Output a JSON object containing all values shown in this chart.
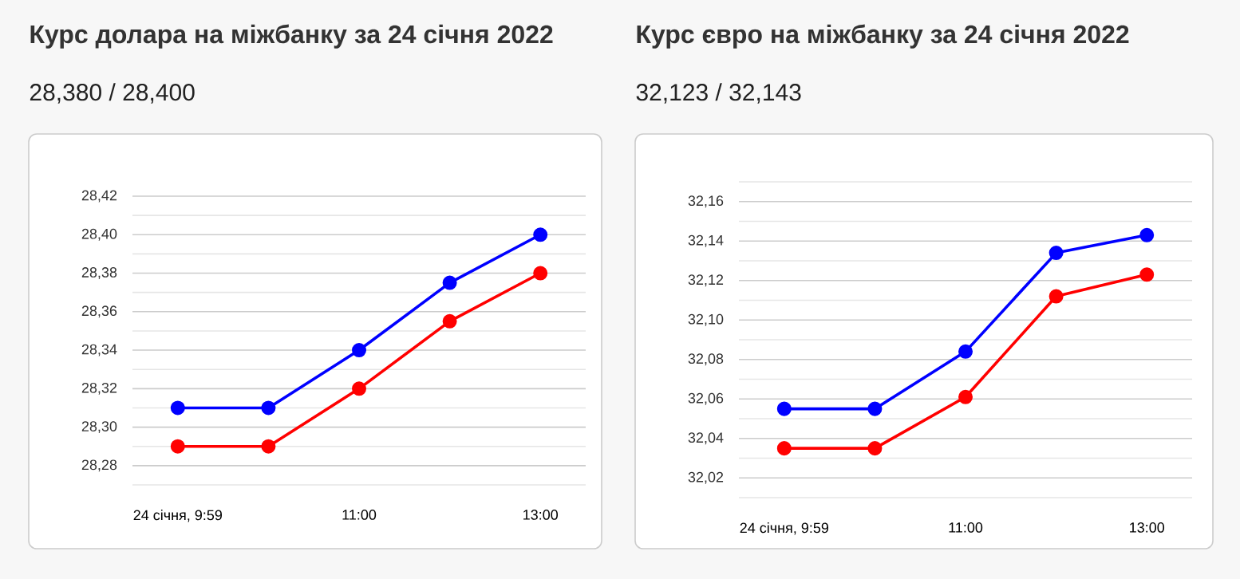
{
  "chart_data": [
    {
      "type": "line",
      "title": "Курс долара на міжбанку за 24 січня 2022",
      "subtitle": "28,380 / 28,400",
      "categories": [
        "24 січня, 9:59",
        null,
        "11:00",
        null,
        "13:00"
      ],
      "series": [
        {
          "color": "#0000ff",
          "values": [
            28.31,
            28.31,
            28.34,
            28.375,
            28.4
          ]
        },
        {
          "color": "#ff0000",
          "values": [
            28.29,
            28.29,
            28.32,
            28.355,
            28.38
          ]
        }
      ],
      "ylim": [
        28.27,
        28.42
      ],
      "yticks": [
        {
          "value": 28.27,
          "label": null
        },
        {
          "value": 28.28,
          "label": "28,28"
        },
        {
          "value": 28.29,
          "label": null
        },
        {
          "value": 28.3,
          "label": "28,30"
        },
        {
          "value": 28.31,
          "label": null
        },
        {
          "value": 28.32,
          "label": "28,32"
        },
        {
          "value": 28.33,
          "label": null
        },
        {
          "value": 28.34,
          "label": "28,34"
        },
        {
          "value": 28.35,
          "label": null
        },
        {
          "value": 28.36,
          "label": "28,36"
        },
        {
          "value": 28.37,
          "label": null
        },
        {
          "value": 28.38,
          "label": "28,38"
        },
        {
          "value": 28.39,
          "label": null
        },
        {
          "value": 28.4,
          "label": "28,40"
        },
        {
          "value": 28.41,
          "label": null
        },
        {
          "value": 28.42,
          "label": "28,42"
        }
      ],
      "grid": "y",
      "marker": "circle",
      "line_style": "solid"
    },
    {
      "type": "line",
      "title": "Курс євро на міжбанку за 24 січня 2022",
      "subtitle": "32,123 / 32,143",
      "categories": [
        "24 січня, 9:59",
        null,
        "11:00",
        null,
        "13:00"
      ],
      "series": [
        {
          "color": "#0000ff",
          "values": [
            32.055,
            32.055,
            32.084,
            32.134,
            32.143
          ]
        },
        {
          "color": "#ff0000",
          "values": [
            32.035,
            32.035,
            32.061,
            32.112,
            32.123
          ]
        }
      ],
      "ylim": [
        32.01,
        32.17
      ],
      "yticks": [
        {
          "value": 32.01,
          "label": null
        },
        {
          "value": 32.02,
          "label": "32,02"
        },
        {
          "value": 32.03,
          "label": null
        },
        {
          "value": 32.04,
          "label": "32,04"
        },
        {
          "value": 32.05,
          "label": null
        },
        {
          "value": 32.06,
          "label": "32,06"
        },
        {
          "value": 32.07,
          "label": null
        },
        {
          "value": 32.08,
          "label": "32,08"
        },
        {
          "value": 32.09,
          "label": null
        },
        {
          "value": 32.1,
          "label": "32,10"
        },
        {
          "value": 32.11,
          "label": null
        },
        {
          "value": 32.12,
          "label": "32,12"
        },
        {
          "value": 32.13,
          "label": null
        },
        {
          "value": 32.14,
          "label": "32,14"
        },
        {
          "value": 32.15,
          "label": null
        },
        {
          "value": 32.16,
          "label": "32,16"
        },
        {
          "value": 32.17,
          "label": null
        }
      ],
      "grid": "y",
      "marker": "circle",
      "line_style": "solid"
    }
  ]
}
